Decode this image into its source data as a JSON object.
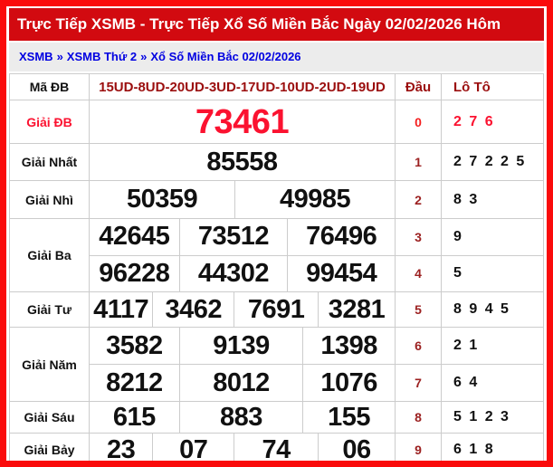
{
  "page_title": "Trực Tiếp XSMB - Trực Tiếp Xổ Số Miền Bắc Ngày 02/02/2026 Hôm",
  "breadcrumb": {
    "separator": "»",
    "items": [
      {
        "label": "XSMB"
      },
      {
        "label": "XSMB Thứ 2"
      },
      {
        "label": "Xổ Số Miền Bắc 02/02/2026"
      }
    ]
  },
  "colors": {
    "outer_border_red": "#fa0b0b",
    "title_bar_bg": "#d20a10",
    "bright_red": "#fb1230",
    "dark_red": "#9b0e0e",
    "dau_maroon": "#9c2121",
    "breadcrumb_blue": "#0000e1",
    "grid_line": "#cccccc"
  },
  "table": {
    "header": {
      "label": "Mã ĐB",
      "code": "15UD-8UD-20UD-3UD-17UD-10UD-2UD-19UD",
      "dau_header": "Đầu",
      "loto_header": "Lô Tô"
    },
    "rows": [
      {
        "label": "Giải ĐB",
        "numbers": [
          "73461"
        ],
        "dau": "0",
        "loto": "2 7 6"
      },
      {
        "label": "Giải Nhất",
        "numbers": [
          "85558"
        ],
        "dau": "1",
        "loto": "2 7 2 2 5"
      },
      {
        "label": "Giải Nhì",
        "numbers": [
          "50359",
          "49985"
        ],
        "dau": "2",
        "loto": "8 3"
      },
      {
        "label": "Giải Ba",
        "lines": [
          {
            "numbers": [
              "42645",
              "73512",
              "76496"
            ],
            "dau": "3",
            "loto": "9"
          },
          {
            "numbers": [
              "96228",
              "44302",
              "99454"
            ],
            "dau": "4",
            "loto": "5"
          }
        ]
      },
      {
        "label": "Giải Tư",
        "numbers": [
          "4117",
          "3462",
          "7691",
          "3281"
        ],
        "dau": "5",
        "loto": "8 9 4 5"
      },
      {
        "label": "Giải Năm",
        "lines": [
          {
            "numbers": [
              "3582",
              "9139",
              "1398"
            ],
            "dau": "6",
            "loto": "2 1"
          },
          {
            "numbers": [
              "8212",
              "8012",
              "1076"
            ],
            "dau": "7",
            "loto": "6 4"
          }
        ]
      },
      {
        "label": "Giải Sáu",
        "numbers": [
          "615",
          "883",
          "155"
        ],
        "dau": "8",
        "loto": "5 1 2 3"
      },
      {
        "label": "Giải Bảy",
        "numbers": [
          "23",
          "07",
          "74",
          "06"
        ],
        "dau": "9",
        "loto": "6 1 8"
      }
    ]
  }
}
